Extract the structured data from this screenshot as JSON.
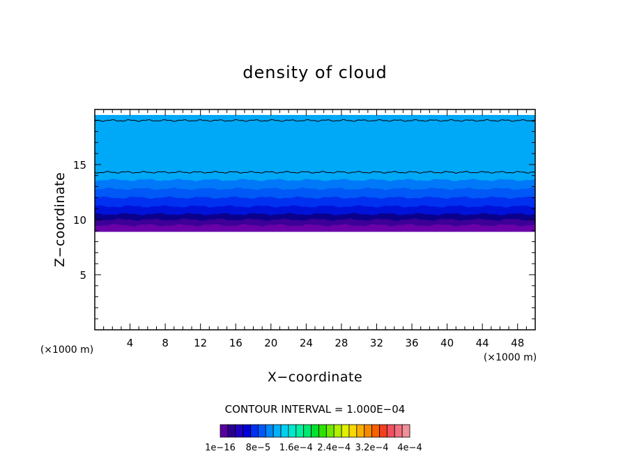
{
  "chart_data": {
    "type": "heatmap",
    "title": "density of cloud",
    "xlabel": "X−coordinate",
    "ylabel": "Z−coordinate",
    "x_unit_label": "(×1000 m)",
    "y_unit_label": "(×1000 m)",
    "xlim": [
      0,
      50
    ],
    "ylim": [
      0,
      20
    ],
    "x_ticks": [
      4,
      8,
      12,
      16,
      20,
      24,
      28,
      32,
      36,
      40,
      44,
      48
    ],
    "x_tick_labels": [
      "4",
      "8",
      "12",
      "16",
      "20",
      "24",
      "28",
      "32",
      "36",
      "40",
      "44",
      "48"
    ],
    "y_ticks": [
      5,
      10,
      15
    ],
    "y_tick_labels": [
      "5",
      "10",
      "15"
    ],
    "cloud_base_km": 8.9,
    "cloud_top_km": 19.5,
    "bands": [
      {
        "z_from": 8.9,
        "z_to": 9.5,
        "color": "#6a00a8"
      },
      {
        "z_from": 9.5,
        "z_to": 10.0,
        "color": "#3c0096"
      },
      {
        "z_from": 10.0,
        "z_to": 10.5,
        "color": "#0a008c"
      },
      {
        "z_from": 10.5,
        "z_to": 11.2,
        "color": "#0012d8"
      },
      {
        "z_from": 11.2,
        "z_to": 12.0,
        "color": "#0030f0"
      },
      {
        "z_from": 12.0,
        "z_to": 12.8,
        "color": "#0058f6"
      },
      {
        "z_from": 12.8,
        "z_to": 13.6,
        "color": "#0078f8"
      },
      {
        "z_from": 13.6,
        "z_to": 19.5,
        "color": "#00a8f8"
      }
    ],
    "contour_lines_km": [
      14.3,
      19.0
    ],
    "contour_interval_text": "CONTOUR INTERVAL = 1.000E−04",
    "colorbar": {
      "colors": [
        "#5a00a0",
        "#2a0090",
        "#2000c0",
        "#0000d8",
        "#0030f0",
        "#0058f8",
        "#0088f8",
        "#00b0f8",
        "#00d0f0",
        "#00e8d0",
        "#00f0a0",
        "#00e870",
        "#00e030",
        "#30e000",
        "#70e800",
        "#b0f000",
        "#e0f000",
        "#f8d800",
        "#f8b000",
        "#f88800",
        "#f86000",
        "#f04020",
        "#f05060",
        "#f07080",
        "#f09098"
      ],
      "labels": [
        "1e−16",
        "8e−5",
        "1.6e−4",
        "2.4e−4",
        "3.2e−4",
        "4e−4"
      ]
    }
  }
}
